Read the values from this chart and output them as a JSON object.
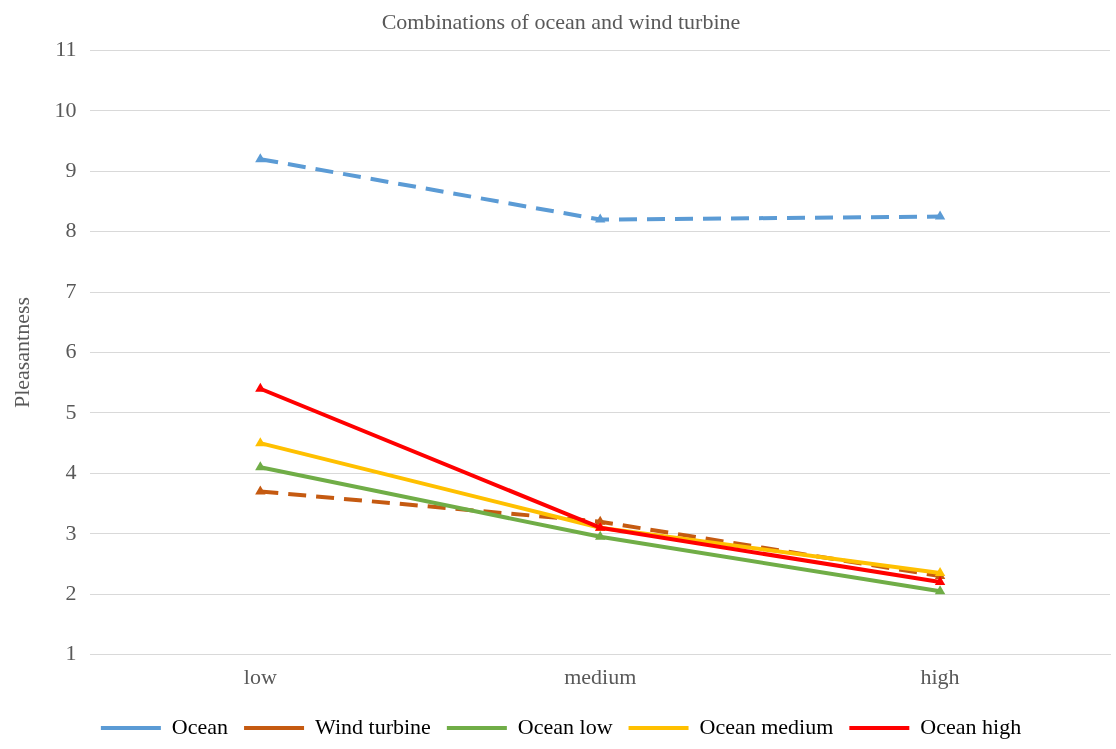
{
  "chart_data": {
    "type": "line",
    "title": "Combinations of ocean and wind turbine",
    "ylabel": "Pleasantness",
    "categories": [
      "low",
      "medium",
      "high"
    ],
    "ylim": [
      1,
      11
    ],
    "yticks": [
      1,
      2,
      3,
      4,
      5,
      6,
      7,
      8,
      9,
      10,
      11
    ],
    "grid": "y",
    "legend": "bottom",
    "marker": "triangle",
    "series": [
      {
        "name": "Ocean",
        "color": "#5b9bd5",
        "line_style": "dashed",
        "values": [
          9.2,
          8.2,
          8.25
        ]
      },
      {
        "name": "Wind turbine",
        "color": "#c55a11",
        "line_style": "dashed",
        "values": [
          3.7,
          3.2,
          2.3
        ]
      },
      {
        "name": "Ocean low",
        "color": "#70ad47",
        "line_style": "solid",
        "values": [
          4.1,
          2.95,
          2.05
        ]
      },
      {
        "name": "Ocean medium",
        "color": "#ffc000",
        "line_style": "solid",
        "values": [
          4.5,
          3.1,
          2.35
        ]
      },
      {
        "name": "Ocean high",
        "color": "#ff0000",
        "line_style": "solid",
        "values": [
          5.4,
          3.1,
          2.2
        ]
      }
    ]
  }
}
